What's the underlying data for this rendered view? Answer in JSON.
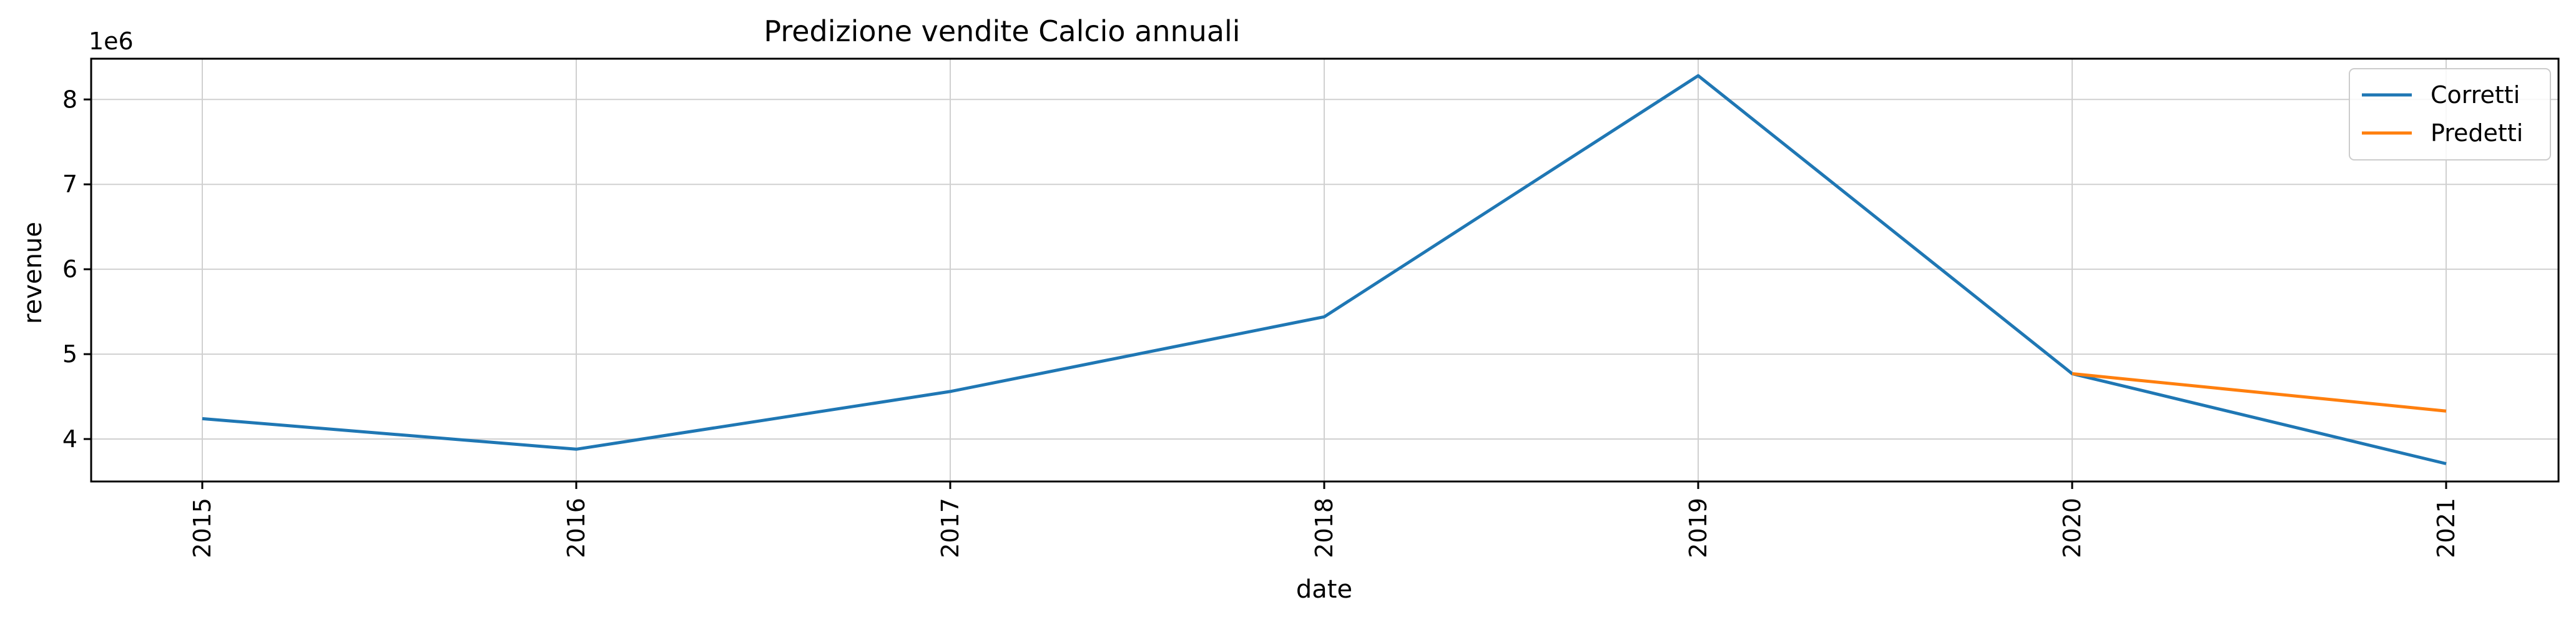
{
  "chart_data": {
    "type": "line",
    "title": "Predizione vendite Calcio annuali",
    "xlabel": "date",
    "ylabel": "revenue",
    "y_offset_label": "1e6",
    "x": [
      "2015",
      "2016",
      "2017",
      "2018",
      "2019",
      "2020",
      "2021"
    ],
    "y_ticks": [
      4,
      5,
      6,
      7,
      8
    ],
    "y_tick_labels": [
      "4",
      "5",
      "6",
      "7",
      "8"
    ],
    "ylim": [
      3500000,
      8480000
    ],
    "grid": true,
    "legend_position": "top-right",
    "series": [
      {
        "name": "Corretti",
        "color": "#1f77b4",
        "x": [
          "2015",
          "2016",
          "2017",
          "2018",
          "2019",
          "2020",
          "2021"
        ],
        "values": [
          4240000,
          3880000,
          4560000,
          5440000,
          8280000,
          4770000,
          3710000
        ]
      },
      {
        "name": "Predetti",
        "color": "#ff7f0e",
        "x": [
          "2020",
          "2021"
        ],
        "values": [
          4770000,
          4330000
        ]
      }
    ]
  }
}
